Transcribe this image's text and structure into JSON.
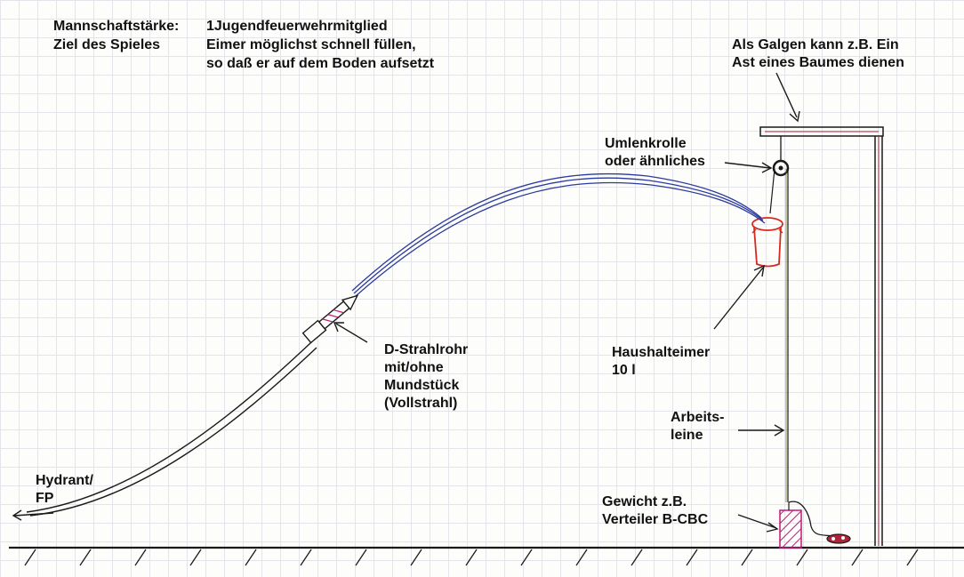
{
  "header": {
    "team_label": "Mannschaftstärke:",
    "team_value": "1Jugendfeuerwehrmitglied",
    "goal_label": "Ziel des Spieles",
    "goal_line1": "Eimer möglichst schnell füllen,",
    "goal_line2": "so daß er auf dem Boden aufsetzt"
  },
  "labels": {
    "galgen": [
      "Als Galgen kann z.B. Ein",
      "Ast eines Baumes dienen"
    ],
    "rolle": [
      "Umlenkrolle",
      "oder ähnliches"
    ],
    "strahlrohr": [
      "D-Strahlrohr",
      "mit/ohne",
      "Mundstück",
      "(Vollstrahl)"
    ],
    "eimer": [
      "Haushalteimer",
      "10 l"
    ],
    "leine": [
      "Arbeits-",
      "leine"
    ],
    "gewicht": [
      "Gewicht z.B.",
      "Verteiler B-CBC"
    ],
    "hydrant": [
      "Hydrant/",
      "FP"
    ]
  },
  "colors": {
    "ink": "#1a1a1a",
    "water": "#2b3a9e",
    "gallows": "#b0243a",
    "bucket": "#d42a1f",
    "weight_hatch": "#c2187a",
    "grid": "#e3e5ea"
  },
  "icons": {
    "arrows": "hand-drawn-arrow",
    "pulley": "pulley-wheel-icon",
    "nozzle": "nozzle-icon",
    "weight": "hatched-weight-block"
  }
}
